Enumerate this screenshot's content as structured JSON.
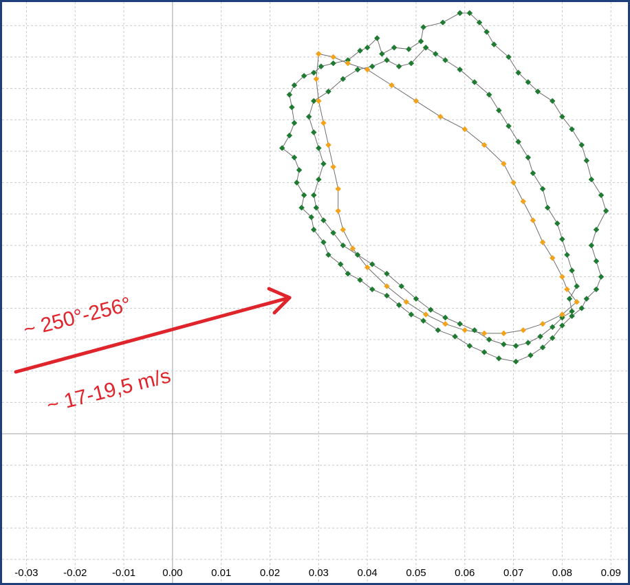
{
  "chart_data": {
    "type": "scatter",
    "xlim": [
      -0.035,
      0.0935
    ],
    "ylim": [
      -0.0475,
      0.1375
    ],
    "x_ticks": [
      -0.03,
      -0.02,
      -0.01,
      0.0,
      0.01,
      0.02,
      0.03,
      0.04,
      0.05,
      0.06,
      0.07,
      0.08,
      0.09
    ],
    "x_tick_labels": [
      "-0.03",
      "-0.02",
      "-0.01",
      "0.00",
      "0.01",
      "0.02",
      "0.03",
      "0.04",
      "0.05",
      "0.06",
      "0.07",
      "0.08",
      "0.09"
    ],
    "y_gridlines": [
      -0.04,
      -0.03,
      -0.02,
      -0.01,
      0.0,
      0.01,
      0.02,
      0.03,
      0.04,
      0.05,
      0.06,
      0.07,
      0.08,
      0.09,
      0.1,
      0.11,
      0.12,
      0.13
    ],
    "grid": true,
    "colors": {
      "frame": "#1f3f7a",
      "grid": "#c8c8c8",
      "zero_line": "#a0a0a0",
      "connector": "#6e6e6e",
      "series_green": "#1f7a32",
      "series_orange": "#f2a31b",
      "annotation": "#e0242b"
    },
    "series": [
      {
        "marker_color": "#1f7a32",
        "points": [
          [
            0.059,
            0.134
          ],
          [
            0.0555,
            0.131
          ],
          [
            0.0515,
            0.1295
          ],
          [
            0.051,
            0.125
          ],
          [
            0.0485,
            0.1225
          ],
          [
            0.0455,
            0.123
          ],
          [
            0.043,
            0.121
          ],
          [
            0.042,
            0.126
          ],
          [
            0.04,
            0.123
          ],
          [
            0.0385,
            0.122
          ],
          [
            0.036,
            0.119
          ],
          [
            0.033,
            0.118
          ],
          [
            0.0305,
            0.117
          ],
          [
            0.029,
            0.115
          ],
          [
            0.027,
            0.114
          ],
          [
            0.025,
            0.111
          ],
          [
            0.024,
            0.108
          ],
          [
            0.0245,
            0.104
          ],
          [
            0.025,
            0.099
          ],
          [
            0.024,
            0.095
          ],
          [
            0.0225,
            0.091
          ],
          [
            0.025,
            0.088
          ],
          [
            0.026,
            0.084
          ],
          [
            0.0255,
            0.08
          ],
          [
            0.027,
            0.076
          ],
          [
            0.0265,
            0.072
          ],
          [
            0.0285,
            0.069
          ],
          [
            0.029,
            0.065
          ],
          [
            0.031,
            0.061
          ],
          [
            0.032,
            0.057
          ],
          [
            0.0345,
            0.054
          ],
          [
            0.036,
            0.051
          ],
          [
            0.0385,
            0.049
          ],
          [
            0.041,
            0.046
          ],
          [
            0.044,
            0.044
          ],
          [
            0.0465,
            0.041
          ],
          [
            0.049,
            0.038
          ],
          [
            0.0515,
            0.036
          ],
          [
            0.0545,
            0.033
          ],
          [
            0.058,
            0.031
          ],
          [
            0.061,
            0.028
          ],
          [
            0.064,
            0.026
          ],
          [
            0.067,
            0.024
          ],
          [
            0.0705,
            0.023
          ],
          [
            0.0735,
            0.025
          ],
          [
            0.076,
            0.0275
          ],
          [
            0.078,
            0.0305
          ],
          [
            0.08,
            0.0345
          ],
          [
            0.082,
            0.0375
          ],
          [
            0.084,
            0.04
          ],
          [
            0.085,
            0.043
          ],
          [
            0.087,
            0.046
          ],
          [
            0.088,
            0.05
          ],
          [
            0.087,
            0.055
          ],
          [
            0.086,
            0.06
          ],
          [
            0.087,
            0.065
          ],
          [
            0.089,
            0.071
          ],
          [
            0.088,
            0.076
          ],
          [
            0.086,
            0.081
          ],
          [
            0.085,
            0.087
          ],
          [
            0.084,
            0.092
          ],
          [
            0.082,
            0.097
          ],
          [
            0.08,
            0.101
          ],
          [
            0.078,
            0.106
          ],
          [
            0.075,
            0.109
          ],
          [
            0.073,
            0.112
          ],
          [
            0.071,
            0.115
          ],
          [
            0.069,
            0.12
          ],
          [
            0.066,
            0.124
          ],
          [
            0.0645,
            0.128
          ],
          [
            0.063,
            0.131
          ],
          [
            0.061,
            0.134
          ],
          [
            0.059,
            0.134
          ]
        ]
      },
      {
        "marker_color": "#1f7a32",
        "points": [
          [
            0.052,
            0.123
          ],
          [
            0.049,
            0.118
          ],
          [
            0.0465,
            0.117
          ],
          [
            0.044,
            0.119
          ],
          [
            0.041,
            0.117
          ],
          [
            0.038,
            0.116
          ],
          [
            0.035,
            0.113
          ],
          [
            0.032,
            0.109
          ],
          [
            0.029,
            0.106
          ],
          [
            0.028,
            0.101
          ],
          [
            0.029,
            0.096
          ],
          [
            0.03,
            0.091
          ],
          [
            0.031,
            0.086
          ],
          [
            0.03,
            0.081
          ],
          [
            0.029,
            0.076
          ],
          [
            0.0295,
            0.072
          ],
          [
            0.031,
            0.068
          ],
          [
            0.033,
            0.064
          ],
          [
            0.035,
            0.06
          ],
          [
            0.038,
            0.057
          ],
          [
            0.041,
            0.054
          ],
          [
            0.044,
            0.051
          ],
          [
            0.047,
            0.047
          ],
          [
            0.05,
            0.043
          ],
          [
            0.053,
            0.0395
          ],
          [
            0.056,
            0.037
          ],
          [
            0.059,
            0.035
          ],
          [
            0.062,
            0.033
          ],
          [
            0.065,
            0.03
          ],
          [
            0.068,
            0.0285
          ],
          [
            0.0705,
            0.028
          ],
          [
            0.073,
            0.029
          ],
          [
            0.0755,
            0.031
          ],
          [
            0.078,
            0.034
          ],
          [
            0.08,
            0.037
          ],
          [
            0.082,
            0.039
          ],
          [
            0.0815,
            0.043
          ],
          [
            0.083,
            0.047
          ],
          [
            0.082,
            0.052
          ],
          [
            0.081,
            0.057
          ],
          [
            0.08,
            0.062
          ],
          [
            0.079,
            0.067
          ],
          [
            0.077,
            0.072
          ],
          [
            0.076,
            0.078
          ],
          [
            0.074,
            0.083
          ],
          [
            0.073,
            0.088
          ],
          [
            0.071,
            0.093
          ],
          [
            0.069,
            0.098
          ],
          [
            0.067,
            0.103
          ],
          [
            0.065,
            0.108
          ],
          [
            0.062,
            0.112
          ],
          [
            0.059,
            0.116
          ],
          [
            0.056,
            0.119
          ],
          [
            0.054,
            0.121
          ],
          [
            0.052,
            0.123
          ]
        ]
      },
      {
        "marker_color": "#f2a31b",
        "points": [
          [
            0.03,
            0.121
          ],
          [
            0.033,
            0.12
          ],
          [
            0.036,
            0.118
          ],
          [
            0.04,
            0.116
          ],
          [
            0.045,
            0.111
          ],
          [
            0.05,
            0.106
          ],
          [
            0.055,
            0.101
          ],
          [
            0.06,
            0.097
          ],
          [
            0.064,
            0.092
          ],
          [
            0.068,
            0.086
          ],
          [
            0.07,
            0.08
          ],
          [
            0.072,
            0.074
          ],
          [
            0.074,
            0.068
          ],
          [
            0.076,
            0.061
          ],
          [
            0.078,
            0.056
          ],
          [
            0.08,
            0.05
          ],
          [
            0.081,
            0.046
          ],
          [
            0.083,
            0.042
          ],
          [
            0.08,
            0.038
          ],
          [
            0.076,
            0.035
          ],
          [
            0.072,
            0.033
          ],
          [
            0.068,
            0.032
          ],
          [
            0.064,
            0.032
          ],
          [
            0.06,
            0.033
          ],
          [
            0.056,
            0.035
          ],
          [
            0.052,
            0.038
          ],
          [
            0.048,
            0.042
          ],
          [
            0.044,
            0.047
          ],
          [
            0.04,
            0.053
          ],
          [
            0.037,
            0.059
          ],
          [
            0.035,
            0.065
          ],
          [
            0.034,
            0.071
          ],
          [
            0.034,
            0.078
          ],
          [
            0.033,
            0.085
          ],
          [
            0.032,
            0.092
          ],
          [
            0.031,
            0.099
          ],
          [
            0.03,
            0.106
          ],
          [
            0.0295,
            0.113
          ],
          [
            0.03,
            0.121
          ]
        ]
      }
    ]
  },
  "annotation": {
    "direction_label": "~ 250°-256°",
    "speed_label": "~ 17-19,5 m/s"
  }
}
